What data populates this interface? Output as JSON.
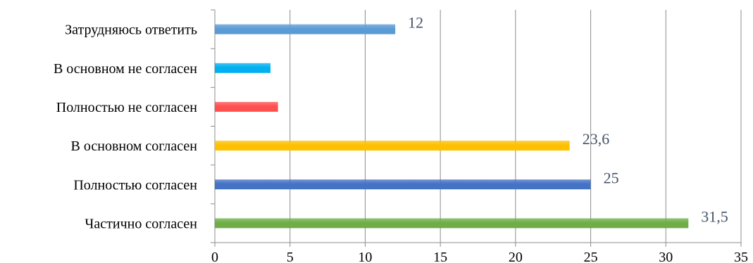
{
  "chart_data": {
    "type": "bar",
    "orientation": "horizontal",
    "title": "",
    "xlabel": "",
    "ylabel": "",
    "xlim": [
      0,
      35
    ],
    "x_ticks": [
      0,
      5,
      10,
      15,
      20,
      25,
      30,
      35
    ],
    "grid": "vertical",
    "legend": "none",
    "categories": [
      "Затрудняюсь ответить",
      "В основном не согласен",
      "Полностью не согласен",
      "В основном согласен",
      "Полностью согласен",
      "Частично согласен"
    ],
    "values": [
      12,
      3.7,
      4.2,
      23.6,
      25,
      31.5
    ],
    "data_labels": [
      "12",
      "",
      "",
      "23,6",
      "25",
      "31,5"
    ],
    "colors": [
      "#5b9bd5",
      "#00b0f0",
      "#ff5050",
      "#ffc000",
      "#4472c4",
      "#70ad47"
    ]
  }
}
